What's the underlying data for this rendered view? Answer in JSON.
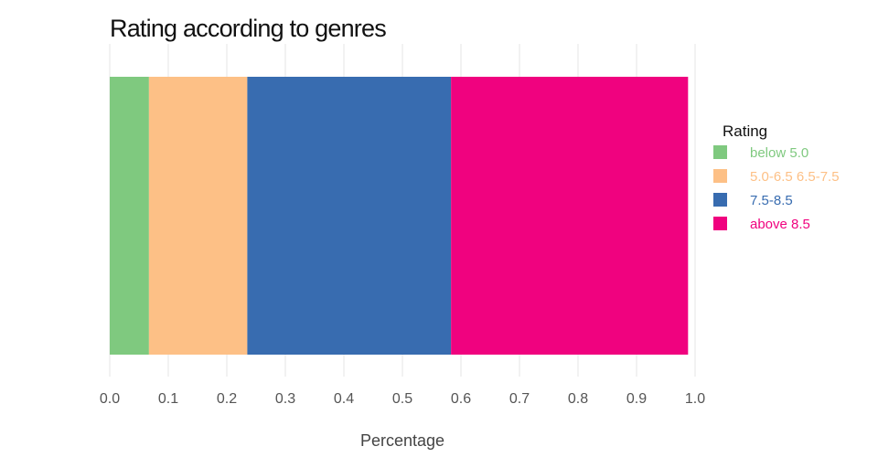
{
  "chart_data": {
    "type": "bar",
    "orientation": "horizontal",
    "stacked": true,
    "title": "Rating according to genres",
    "xlabel": "Percentage",
    "ylabel": "",
    "xlim": [
      0,
      1.0
    ],
    "x_ticks": [
      "0.0",
      "0.1",
      "0.2",
      "0.3",
      "0.4",
      "0.5",
      "0.6",
      "0.7",
      "0.8",
      "0.9",
      "1.0"
    ],
    "grid": true,
    "legend": {
      "title": "Rating",
      "placement": "right"
    },
    "series": [
      {
        "name": "below 5.0",
        "value": 0.067,
        "color": "#7fc97f"
      },
      {
        "name": "5.0-6.5 6.5-7.5",
        "value": 0.168,
        "color": "#fdc086"
      },
      {
        "name": "7.5-8.5",
        "value": 0.348,
        "color": "#386cb0"
      },
      {
        "name": "above 8.5",
        "value": 0.405,
        "color": "#f0027f"
      }
    ]
  }
}
